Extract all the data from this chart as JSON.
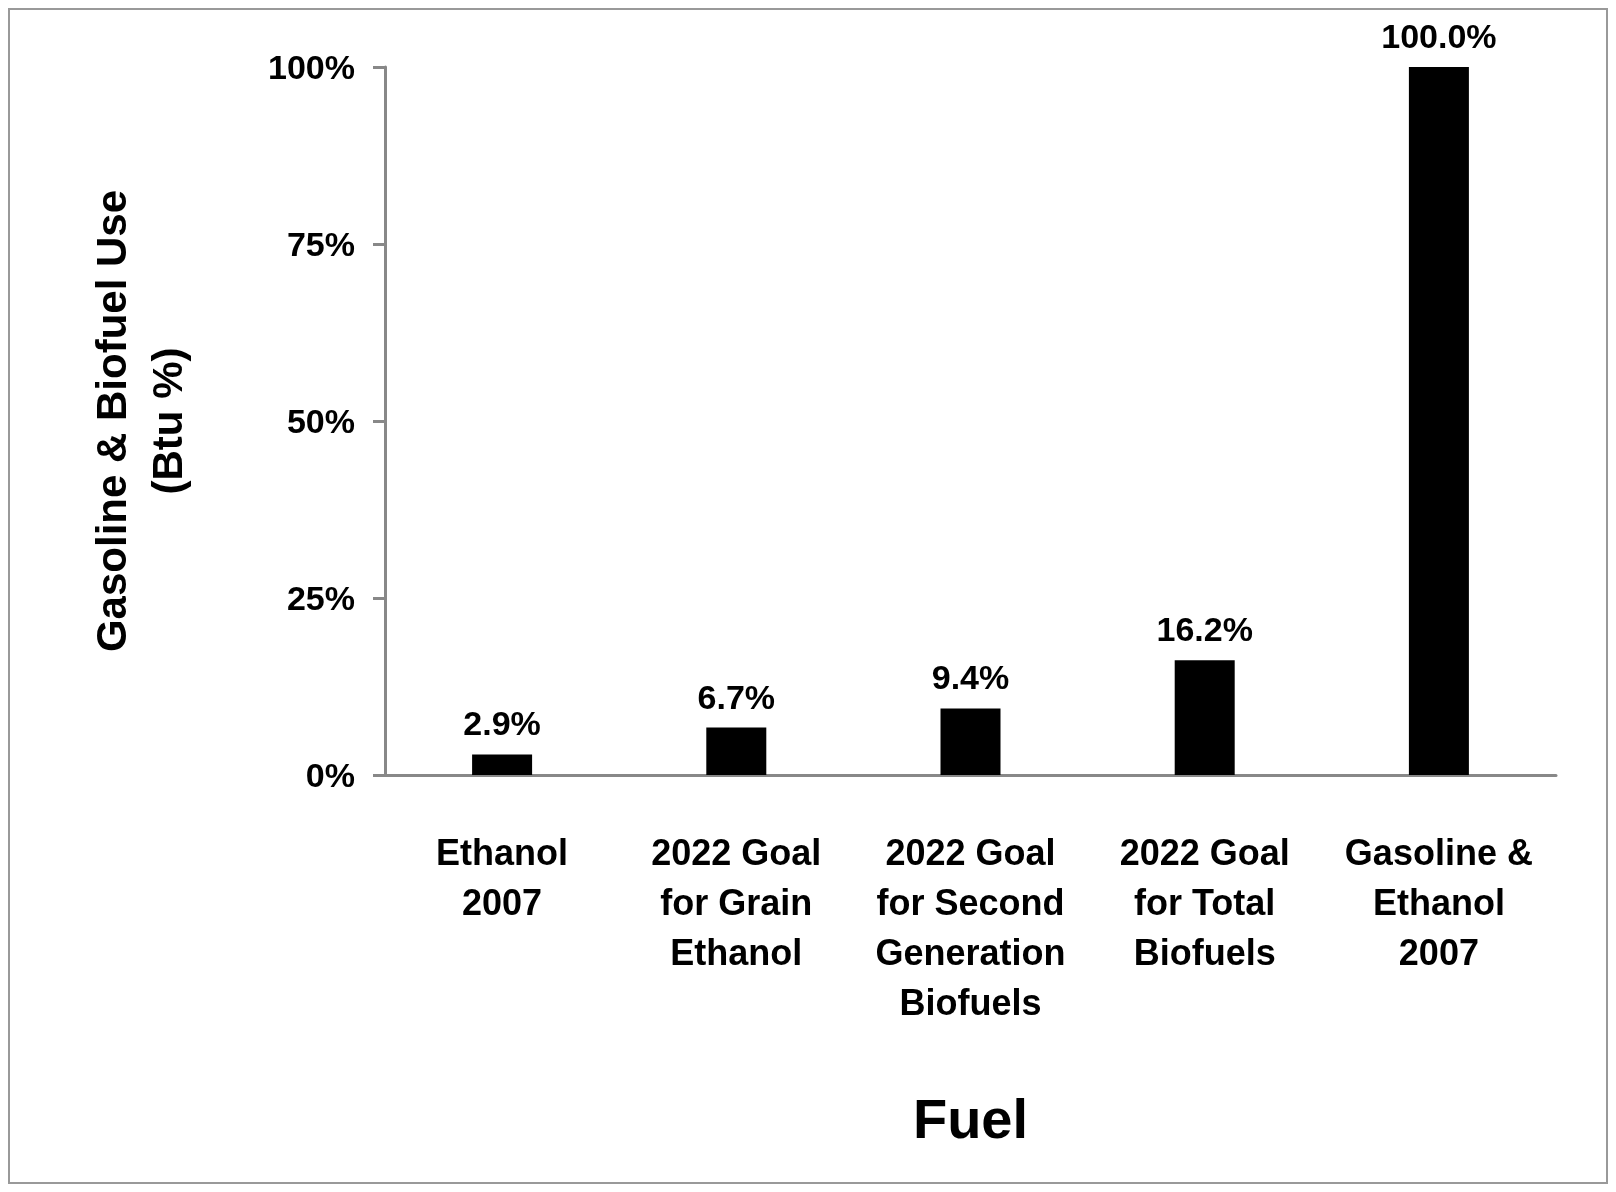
{
  "chart_data": {
    "type": "bar",
    "xlabel": "Fuel",
    "ylabel": "Gasoline & Biofuel Use\n(Btu %)",
    "categories": [
      "Ethanol\n2007",
      "2022 Goal\nfor Grain\nEthanol",
      "2022 Goal\nfor Second\nGeneration\nBiofuels",
      "2022 Goal\nfor Total\nBiofuels",
      "Gasoline &\nEthanol\n2007"
    ],
    "values": [
      2.9,
      6.7,
      9.4,
      16.2,
      100
    ],
    "value_labels": [
      "2.9%",
      "6.7%",
      "9.4%",
      "16.2%",
      "100.0%"
    ],
    "color": "#000000",
    "ylim": [
      0,
      100
    ],
    "yticks": [
      {
        "value": 0,
        "label": "0%"
      },
      {
        "value": 25,
        "label": "25%"
      },
      {
        "value": 50,
        "label": "50%"
      },
      {
        "value": 75,
        "label": "75%"
      },
      {
        "value": 100,
        "label": "100%"
      }
    ],
    "grid": false
  }
}
